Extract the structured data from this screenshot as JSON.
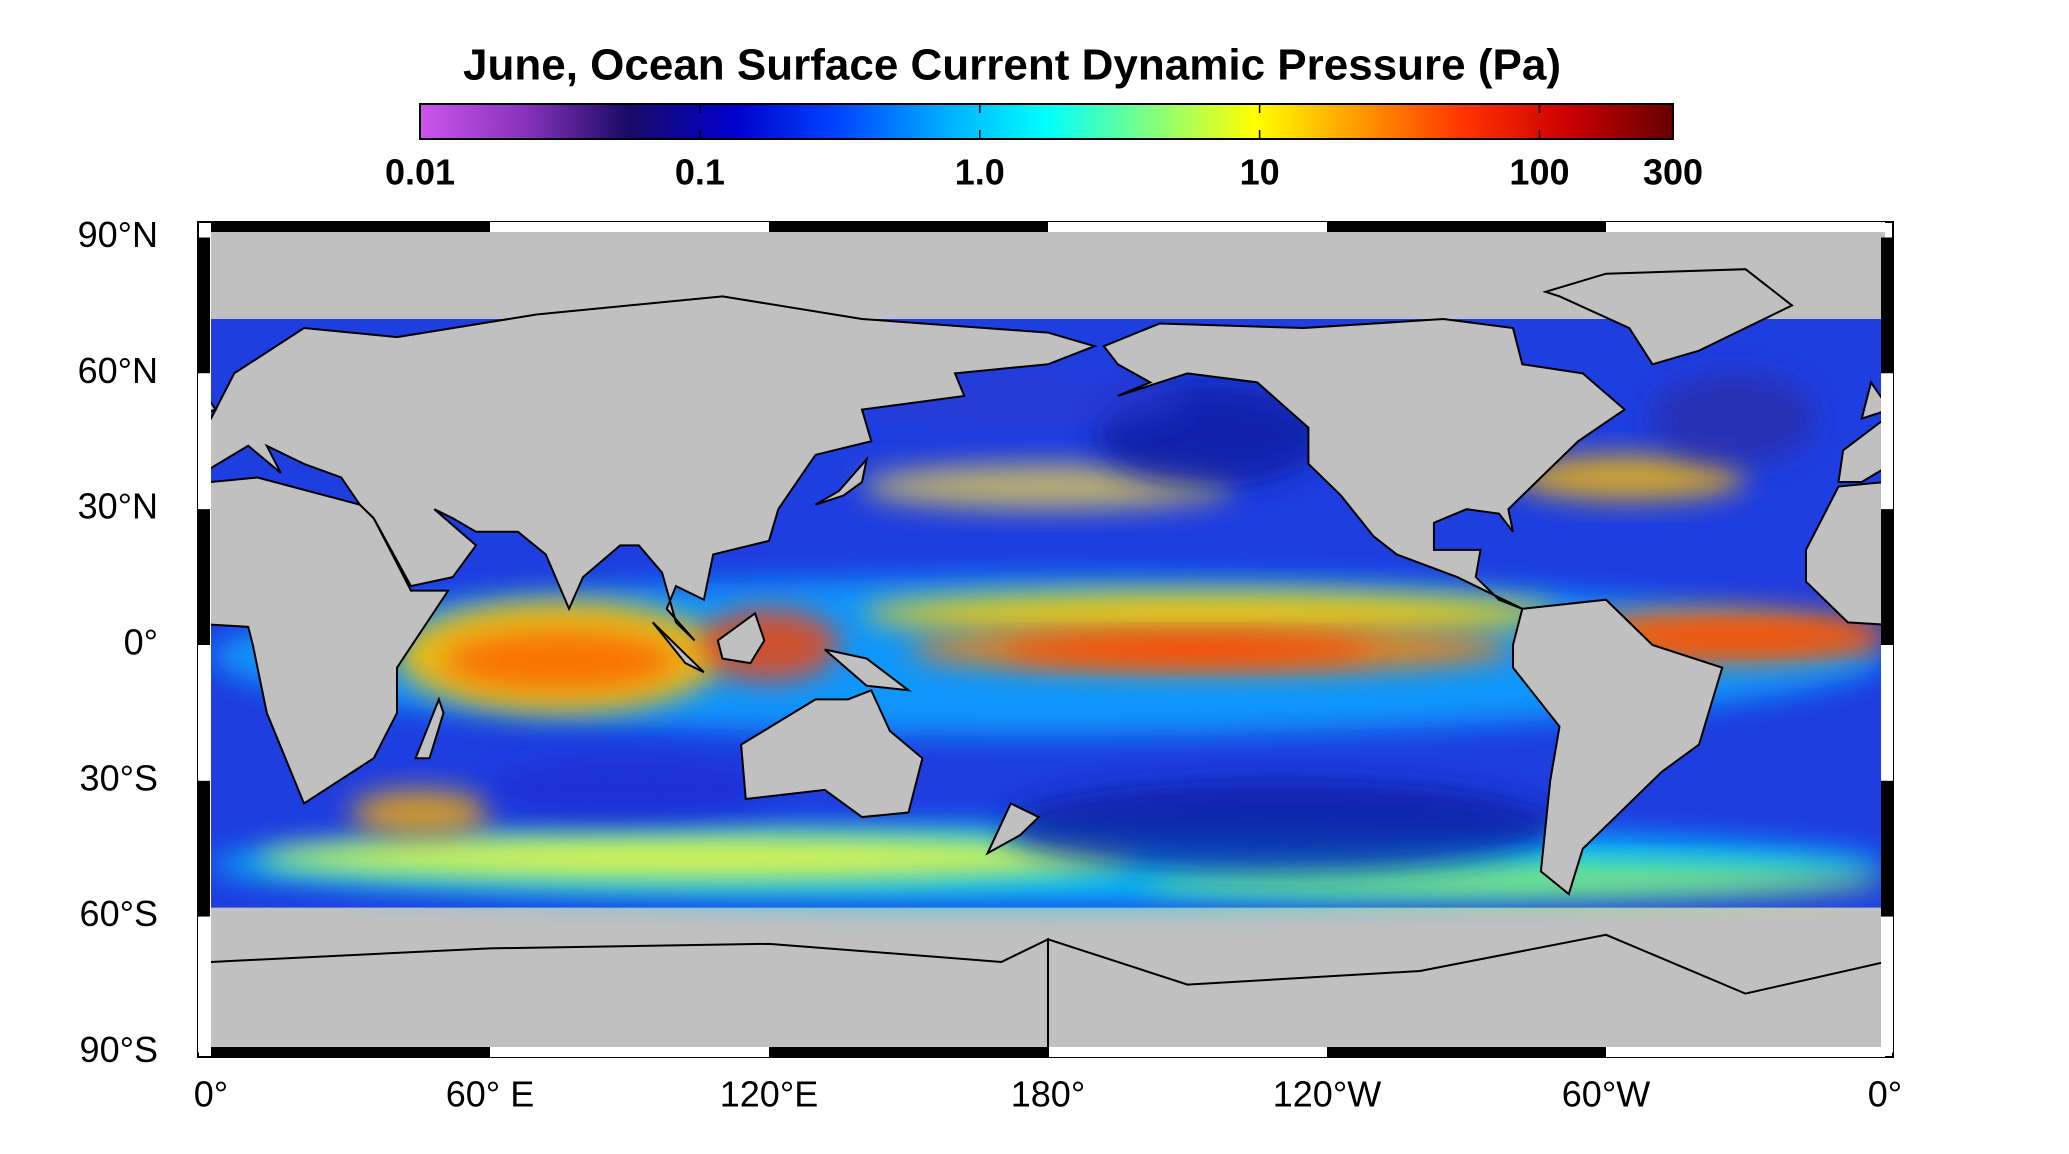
{
  "title": "June, Ocean Surface Current Dynamic Pressure (Pa)",
  "colorbar": {
    "scale": "log",
    "lim": [
      0.01,
      300
    ],
    "ticks": [
      0.01,
      0.1,
      {
        "value": 1,
        "label": "1.0"
      },
      10,
      100,
      300
    ],
    "colors": [
      "#cc55ee",
      "#8833bb",
      "#1a0a66",
      "#0000cc",
      "#0044ff",
      "#00aaff",
      "#00ffff",
      "#7fff7f",
      "#ffff00",
      "#ff9900",
      "#ff3300",
      "#cc0000",
      "#660000"
    ]
  },
  "map": {
    "lat_labels": [
      "90°N",
      "60°N",
      "30°N",
      "0°",
      "30°S",
      "60°S",
      "90°S"
    ],
    "lon_labels": [
      "0°",
      "60° E",
      "120°E",
      "180°",
      "120°W",
      "60°W",
      "0°"
    ]
  }
}
